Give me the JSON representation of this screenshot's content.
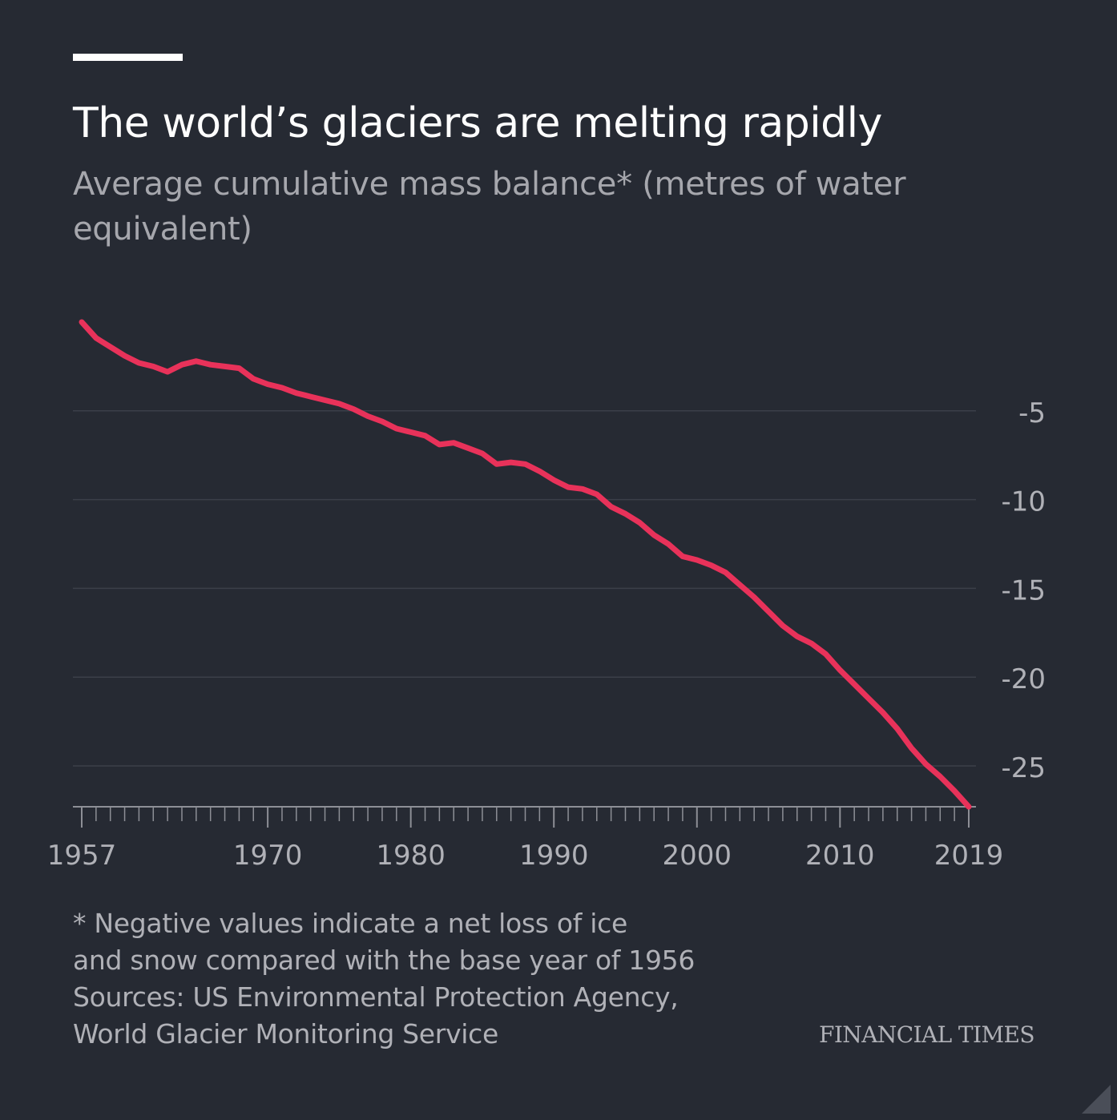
{
  "header": {
    "title": "The world’s glaciers are melting rapidly",
    "subtitle": "Average cumulative mass balance* (metres of water equivalent)"
  },
  "footer": {
    "notes": [
      "* Negative values indicate a net loss of ice",
      "and snow compared with the base year of 1956",
      "Sources: US Environmental Protection Agency,",
      "World Glacier Monitoring Service"
    ],
    "brand": "FINANCIAL TIMES"
  },
  "chart_data": {
    "type": "line",
    "title": "The world’s glaciers are melting rapidly",
    "ylabel": "Average cumulative mass balance* (metres of water equivalent)",
    "xlim": [
      1957,
      2019
    ],
    "ylim": [
      -27.3,
      0
    ],
    "y_ticks": [
      -5,
      -10,
      -15,
      -20,
      -25
    ],
    "y_tick_labels": [
      "-5",
      "-10",
      "-15",
      "-20",
      "-25"
    ],
    "x_tick_labels": [
      {
        "value": 1957,
        "label": "1957"
      },
      {
        "value": 1970,
        "label": "1970"
      },
      {
        "value": 1980,
        "label": "1980"
      },
      {
        "value": 1990,
        "label": "1990"
      },
      {
        "value": 2000,
        "label": "2000"
      },
      {
        "value": 2010,
        "label": "2010"
      },
      {
        "value": 2019,
        "label": "2019"
      }
    ],
    "grid": true,
    "y_axis_side": "right",
    "line_color": "#e8325a",
    "series": [
      {
        "x": [
          1957,
          1958,
          1959,
          1960,
          1961,
          1962,
          1963,
          1964,
          1965,
          1966,
          1967,
          1968,
          1969,
          1970,
          1971,
          1972,
          1973,
          1974,
          1975,
          1976,
          1977,
          1978,
          1979,
          1980,
          1981,
          1982,
          1983,
          1984,
          1985,
          1986,
          1987,
          1988,
          1989,
          1990,
          1991,
          1992,
          1993,
          1994,
          1995,
          1996,
          1997,
          1998,
          1999,
          2000,
          2001,
          2002,
          2003,
          2004,
          2005,
          2006,
          2007,
          2008,
          2009,
          2010,
          2011,
          2012,
          2013,
          2014,
          2015,
          2016,
          2017,
          2018,
          2019
        ],
        "values": [
          0.0,
          -0.9,
          -1.4,
          -1.9,
          -2.3,
          -2.5,
          -2.8,
          -2.4,
          -2.2,
          -2.4,
          -2.5,
          -2.6,
          -3.2,
          -3.5,
          -3.7,
          -4.0,
          -4.2,
          -4.4,
          -4.6,
          -4.9,
          -5.3,
          -5.6,
          -6.0,
          -6.2,
          -6.4,
          -6.9,
          -6.8,
          -7.1,
          -7.4,
          -8.0,
          -7.9,
          -8.0,
          -8.4,
          -8.9,
          -9.3,
          -9.4,
          -9.7,
          -10.4,
          -10.8,
          -11.3,
          -12.0,
          -12.5,
          -13.2,
          -13.4,
          -13.7,
          -14.1,
          -14.8,
          -15.5,
          -16.3,
          -17.1,
          -17.7,
          -18.1,
          -18.7,
          -19.6,
          -20.4,
          -21.2,
          -22.0,
          -22.9,
          -24.0,
          -24.9,
          -25.6,
          -26.4,
          -27.3
        ]
      }
    ]
  }
}
